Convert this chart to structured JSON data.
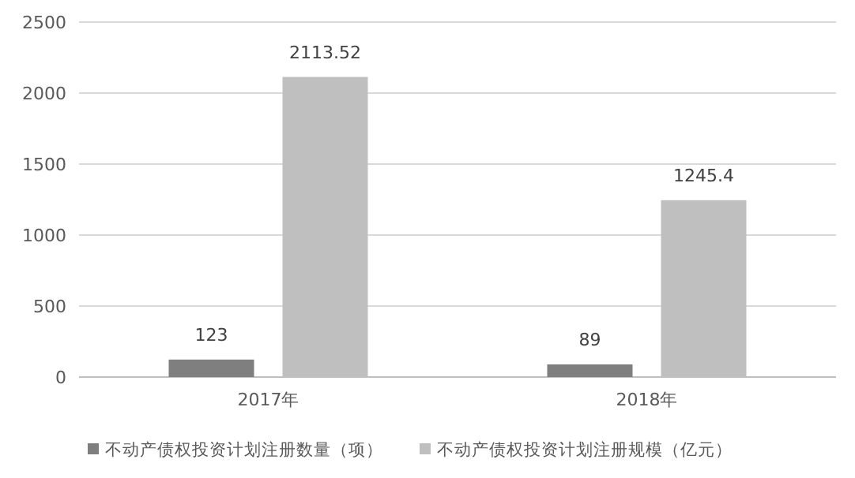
{
  "chart_data": {
    "type": "bar",
    "categories": [
      "2017年",
      "2018年"
    ],
    "series": [
      {
        "name": "不动产债权投资计划注册数量（项）",
        "color": "#7f7f7f",
        "values": [
          123,
          89
        ]
      },
      {
        "name": "不动产债权投资计划注册规模（亿元）",
        "color": "#bfbfbf",
        "values": [
          2113.52,
          1245.4
        ]
      }
    ],
    "ylim": [
      0,
      2500
    ],
    "yticks": [
      0,
      500,
      1000,
      1500,
      2000,
      2500
    ],
    "grid": "y",
    "legend": "bottom",
    "data_labels": true
  }
}
